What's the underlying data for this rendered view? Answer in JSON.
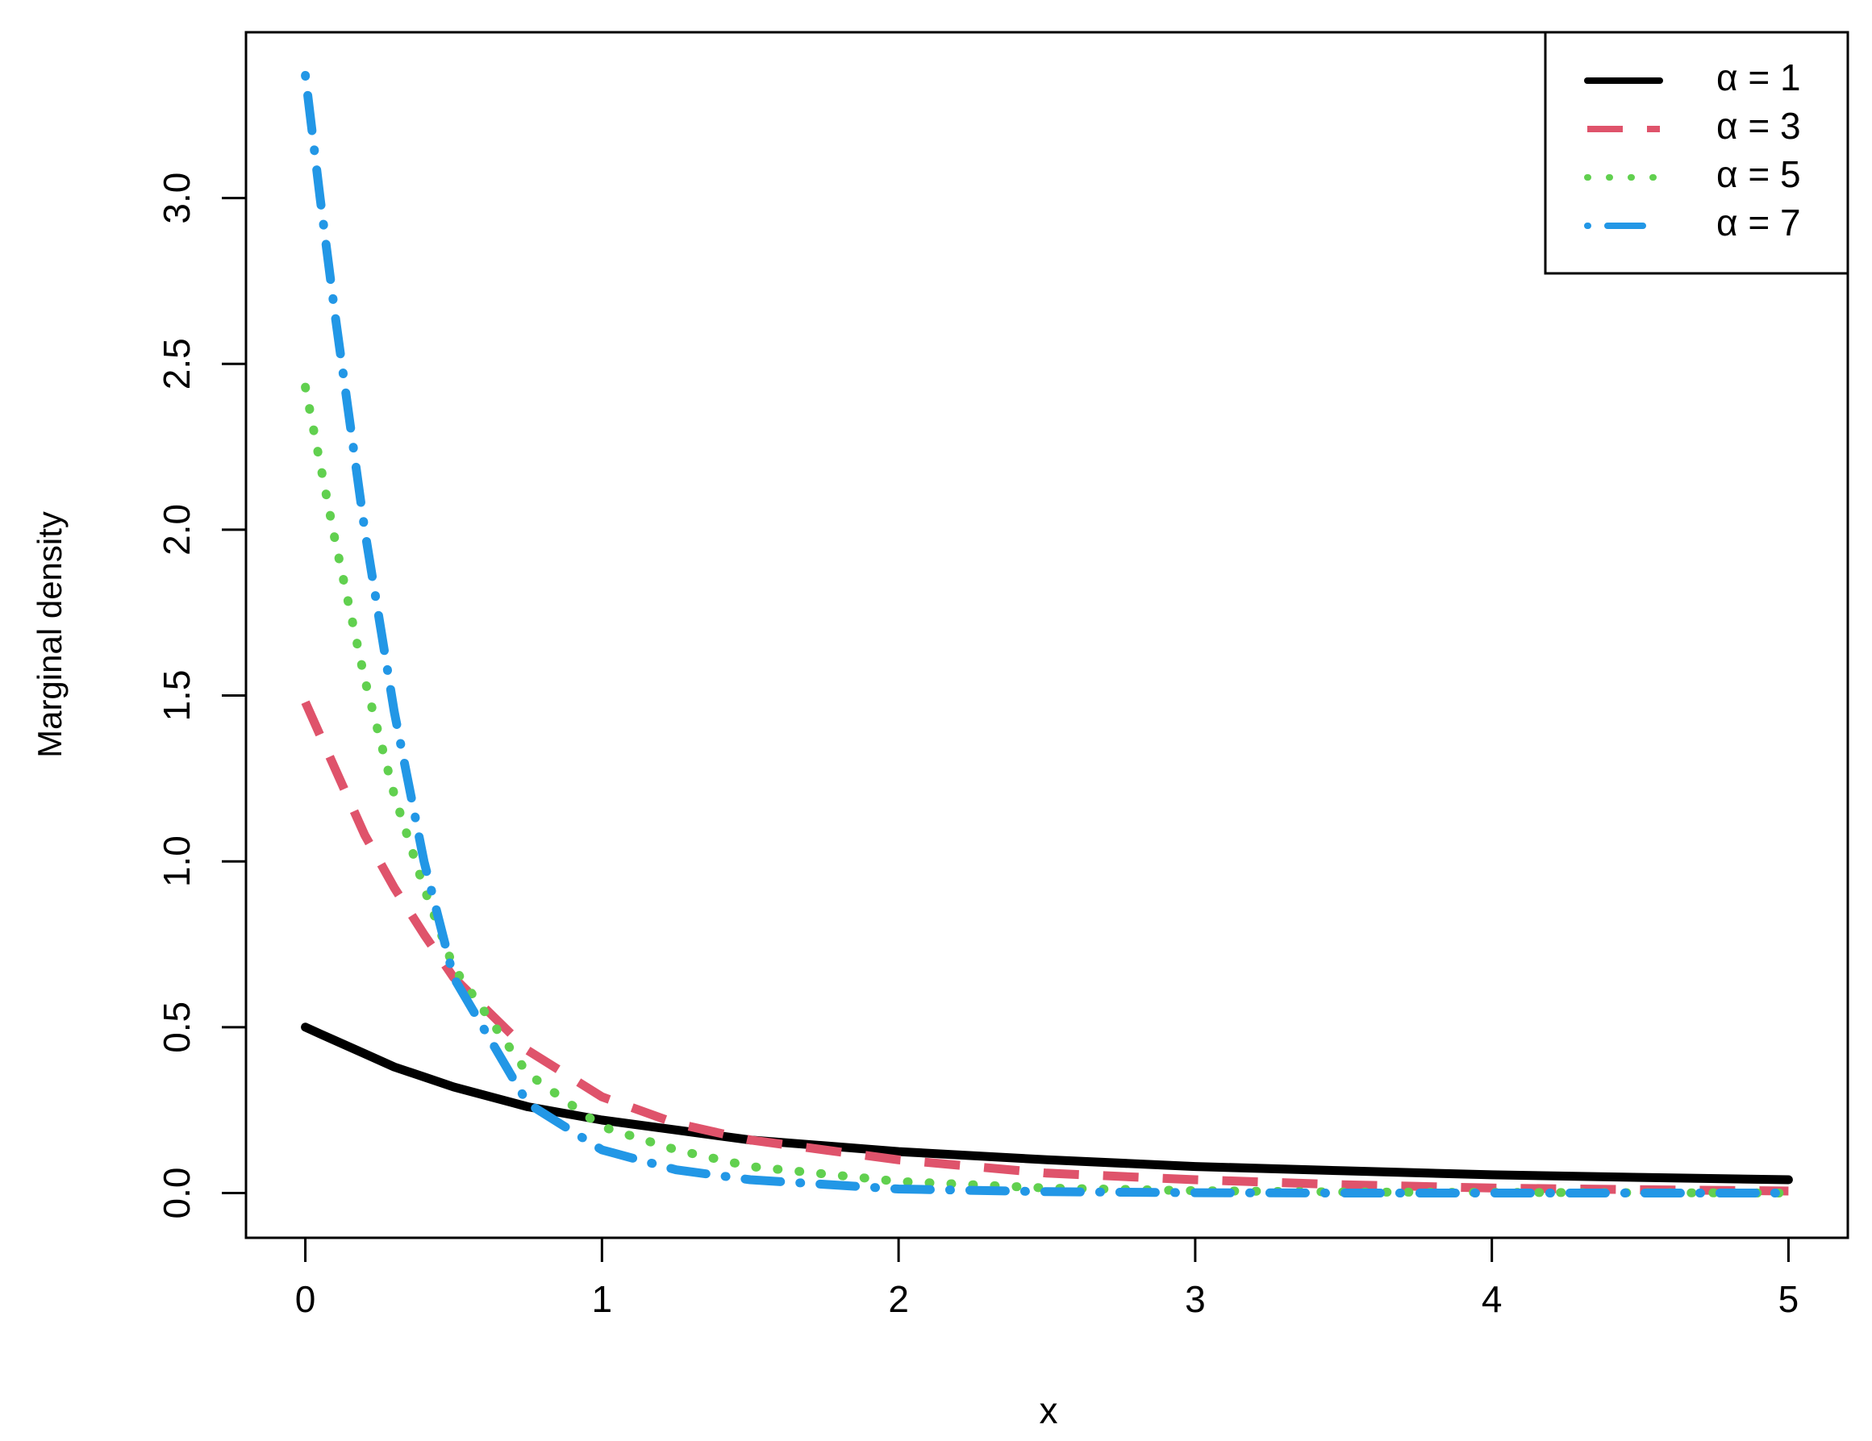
{
  "chart_data": {
    "type": "line",
    "x_label": "x",
    "y_label": "Marginal density",
    "x": [
      0,
      0.05,
      0.1,
      0.2,
      0.3,
      0.4,
      0.5,
      0.75,
      1,
      1.25,
      1.5,
      2,
      2.5,
      3,
      3.5,
      4,
      4.5,
      5
    ],
    "series": [
      {
        "name": "α = 1",
        "color": "#000000",
        "dash": "solid",
        "values": [
          0.5,
          0.48,
          0.46,
          0.42,
          0.38,
          0.35,
          0.32,
          0.26,
          0.22,
          0.19,
          0.16,
          0.125,
          0.1,
          0.08,
          0.067,
          0.055,
          0.047,
          0.04
        ]
      },
      {
        "name": "α = 3",
        "color": "#DF536B",
        "dash": "dashed",
        "values": [
          1.48,
          1.38,
          1.28,
          1.08,
          0.92,
          0.78,
          0.65,
          0.43,
          0.29,
          0.21,
          0.16,
          0.1,
          0.06,
          0.04,
          0.025,
          0.015,
          0.01,
          0.006
        ]
      },
      {
        "name": "α = 5",
        "color": "#61D04F",
        "dash": "dotted",
        "values": [
          2.43,
          2.2,
          1.97,
          1.55,
          1.2,
          0.92,
          0.68,
          0.36,
          0.2,
          0.13,
          0.08,
          0.035,
          0.015,
          0.007,
          0.003,
          0.002,
          0.001,
          0
        ]
      },
      {
        "name": "α = 7",
        "color": "#2297E6",
        "dash": "dotdash",
        "values": [
          3.37,
          3.0,
          2.65,
          2.0,
          1.45,
          1.0,
          0.65,
          0.27,
          0.13,
          0.07,
          0.04,
          0.012,
          0.004,
          0.001,
          0,
          0,
          0,
          0
        ]
      }
    ],
    "xlim": [
      -0.2,
      5.2
    ],
    "ylim": [
      -0.135,
      3.5
    ],
    "xticks": [
      0,
      1,
      2,
      3,
      4,
      5
    ],
    "yticks": [
      {
        "value": 0,
        "label": "0.0"
      },
      {
        "value": 0.5,
        "label": "0.5"
      },
      {
        "value": 1,
        "label": "1.0"
      },
      {
        "value": 1.5,
        "label": "1.5"
      },
      {
        "value": 2,
        "label": "2.0"
      },
      {
        "value": 2.5,
        "label": "2.5"
      },
      {
        "value": 3,
        "label": "3.0"
      }
    ],
    "legend": "topright",
    "grid": false
  }
}
